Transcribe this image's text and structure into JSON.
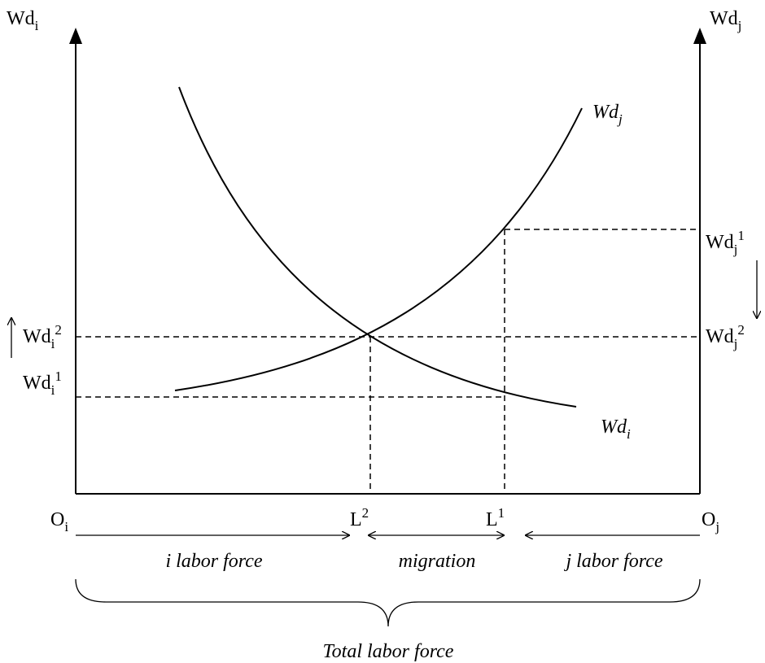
{
  "axes": {
    "left_label": {
      "base": "Wd",
      "sub": "i"
    },
    "right_label": {
      "base": "Wd",
      "sub": "j"
    },
    "origin_left": {
      "base": "O",
      "sub": "i"
    },
    "origin_right": {
      "base": "O",
      "sub": "j"
    }
  },
  "curves": [
    {
      "label": {
        "base": "Wd",
        "sub": "j"
      }
    },
    {
      "label": {
        "base": "Wd",
        "sub": "i"
      }
    }
  ],
  "wage_labels": [
    {
      "base": "Wd",
      "sub": "i",
      "sup": "2"
    },
    {
      "base": "Wd",
      "sub": "i",
      "sup": "1"
    },
    {
      "base": "Wd",
      "sub": "j",
      "sup": "1"
    },
    {
      "base": "Wd",
      "sub": "j",
      "sup": "2"
    }
  ],
  "points": [
    {
      "base": "L",
      "sup": "2"
    },
    {
      "base": "L",
      "sup": "1"
    }
  ],
  "segments": [
    "i labor force",
    "migration",
    "j labor force"
  ],
  "total": "Total labor force"
}
